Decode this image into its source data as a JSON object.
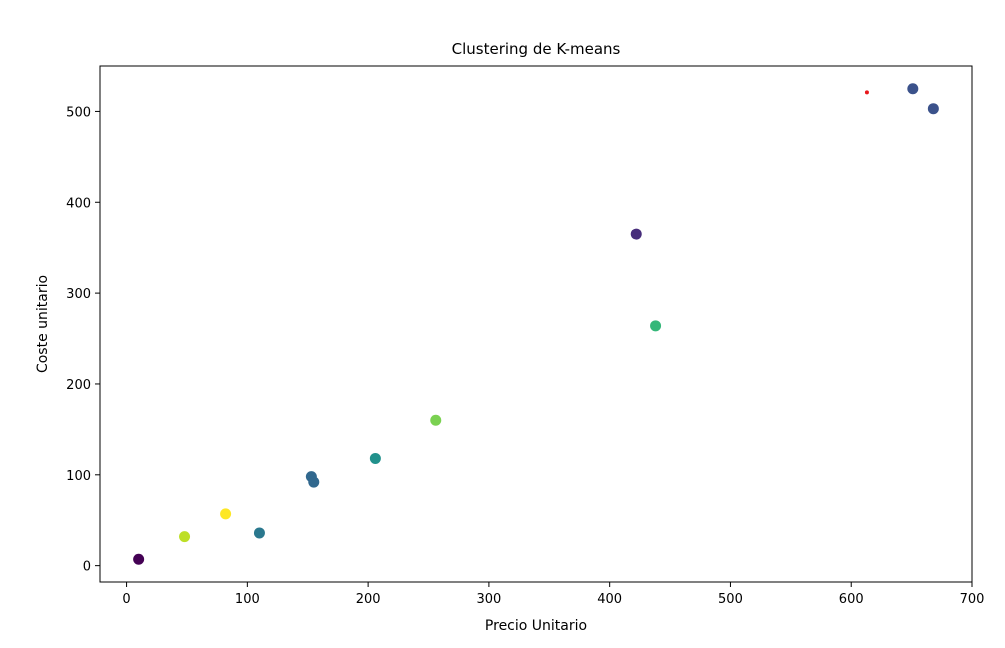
{
  "chart_data": {
    "type": "scatter",
    "title": "Clustering de K-means",
    "xlabel": "Precio Unitario",
    "ylabel": "Coste unitario",
    "xlim": [
      -22,
      700
    ],
    "ylim": [
      -18,
      550
    ],
    "xticks": [
      0,
      100,
      200,
      300,
      400,
      500,
      600,
      700
    ],
    "yticks": [
      0,
      100,
      200,
      300,
      400,
      500
    ],
    "grid": false,
    "legend": "none",
    "points": [
      {
        "x": 10,
        "y": 7,
        "color": "#440154"
      },
      {
        "x": 48,
        "y": 32,
        "color": "#bddf26"
      },
      {
        "x": 82,
        "y": 57,
        "color": "#fde725"
      },
      {
        "x": 110,
        "y": 36,
        "color": "#2a788e"
      },
      {
        "x": 153,
        "y": 98,
        "color": "#31688e"
      },
      {
        "x": 155,
        "y": 92,
        "color": "#31688e"
      },
      {
        "x": 206,
        "y": 118,
        "color": "#21918c"
      },
      {
        "x": 256,
        "y": 160,
        "color": "#7ad151"
      },
      {
        "x": 422,
        "y": 365,
        "color": "#472d7b"
      },
      {
        "x": 438,
        "y": 264,
        "color": "#35b779"
      },
      {
        "x": 651,
        "y": 525,
        "color": "#3b528b"
      },
      {
        "x": 668,
        "y": 503,
        "color": "#3b528b"
      }
    ],
    "centroids": [
      {
        "x": 613,
        "y": 521,
        "color": "#e8161b"
      }
    ]
  }
}
